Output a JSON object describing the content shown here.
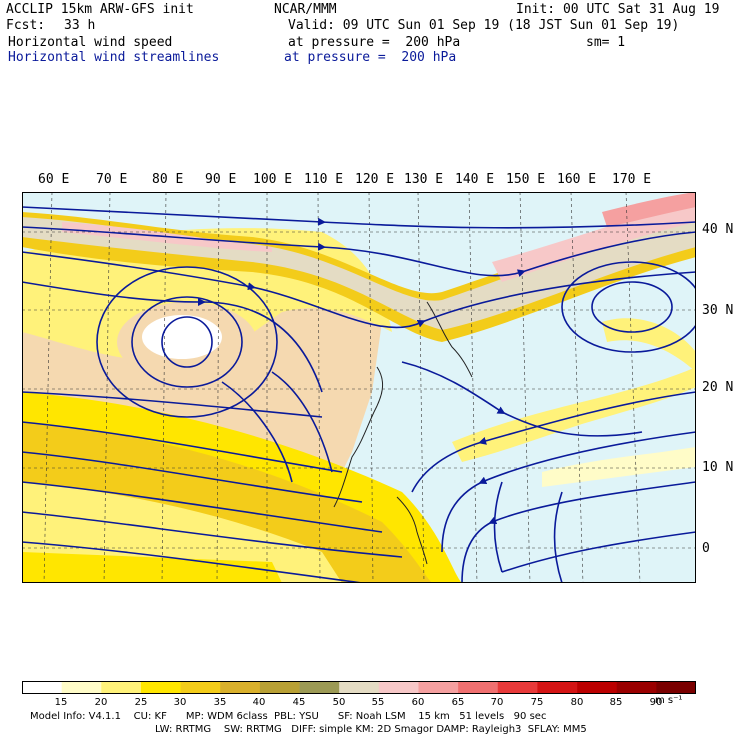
{
  "header": {
    "model": "ACCLIP 15km ARW-GFS init",
    "org": "NCAR/MMM",
    "init": "Init: 00 UTC Sat 31 Aug 19",
    "fcst_label": "Fcst:",
    "fcst_value": "33 h",
    "valid": "Valid: 09 UTC Sun 01 Sep 19 (18 JST Sun 01 Sep 19)",
    "field1": "Horizontal wind speed",
    "field1_level": "at pressure =  200 hPa",
    "field1_smooth": "sm= 1",
    "field2": "Horizontal wind streamlines",
    "field2_level": "at pressure =  200 hPa"
  },
  "axes": {
    "lon_labels": [
      "60 E",
      "70 E",
      "80 E",
      "90 E",
      "100 E",
      "110 E",
      "120 E",
      "130 E",
      "140 E",
      "150 E",
      "160 E",
      "170 E"
    ],
    "lat_labels": [
      "40 N",
      "30 N",
      "20 N",
      "10 N",
      "0"
    ]
  },
  "colorbar": {
    "labels": [
      "15",
      "20",
      "25",
      "30",
      "35",
      "40",
      "45",
      "50",
      "55",
      "60",
      "65",
      "70",
      "75",
      "80",
      "85",
      "90"
    ],
    "units": "m s⁻¹",
    "colors": [
      "#ffffff",
      "#fffcc8",
      "#fff27a",
      "#ffe600",
      "#f3cc1a",
      "#d9b02c",
      "#b8a035",
      "#9c9a55",
      "#e4dcc4",
      "#f7c8c8",
      "#f5a0a0",
      "#f07070",
      "#e83a3a",
      "#d41414",
      "#bb0000",
      "#9a0000",
      "#7a0000"
    ]
  },
  "map": {
    "land_color": "#f5d9b0",
    "ocean_color": "#dff4f8",
    "streamline_color": "#0a1a9a"
  },
  "model_info": {
    "line1": "Model Info: V4.1.1    CU: KF      MP: WDM 6class  PBL: YSU      SF: Noah LSM    15 km   51 levels   90 sec",
    "line2": "LW: RRTMG    SW: RRTMG   DIFF: simple KM: 2D Smagor DAMP: Rayleigh3  SFLAY: MM5"
  }
}
